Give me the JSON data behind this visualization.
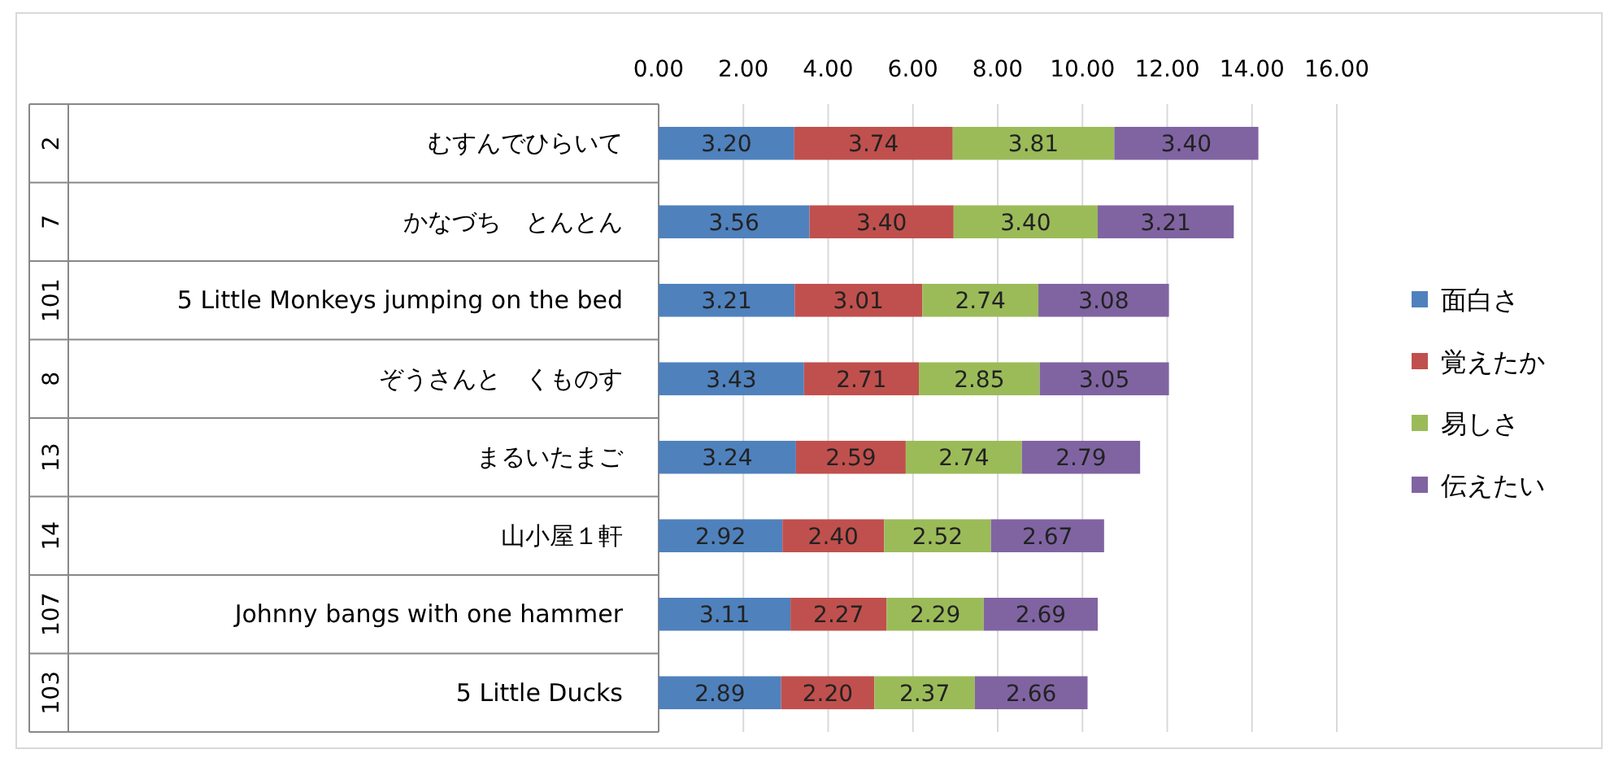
{
  "chart_data": {
    "type": "bar",
    "orientation": "horizontal",
    "stacked": true,
    "categories": [
      "むすんでひらいて",
      "かなづち　とんとん",
      "5 Little Monkeys jumping on the bed",
      "ぞうさんと　くものす",
      "まるいたまご",
      "山小屋１軒",
      "Johnny bangs with one hammer",
      "5 Little Ducks"
    ],
    "y2_categories": [
      "2",
      "7",
      "101",
      "8",
      "13",
      "14",
      "107",
      "103"
    ],
    "xlim": [
      0,
      16
    ],
    "xticks": [
      {
        "value": 0,
        "label": "0.00"
      },
      {
        "value": 2,
        "label": "2.00"
      },
      {
        "value": 4,
        "label": "4.00"
      },
      {
        "value": 6,
        "label": "6.00"
      },
      {
        "value": 8,
        "label": "8.00"
      },
      {
        "value": 10,
        "label": "10.00"
      },
      {
        "value": 12,
        "label": "12.00"
      },
      {
        "value": 14,
        "label": "14.00"
      },
      {
        "value": 16,
        "label": "16.00"
      }
    ],
    "grid": "x",
    "legend": "right",
    "series": [
      {
        "name": "面白さ",
        "color": "#4f81bd",
        "values": [
          3.2,
          3.56,
          3.21,
          3.43,
          3.24,
          2.92,
          3.11,
          2.89
        ],
        "value_labels": [
          "3.20",
          "3.56",
          "3.21",
          "3.43",
          "3.24",
          "2.92",
          "3.11",
          "2.89"
        ]
      },
      {
        "name": "覚えたか",
        "color": "#c0504d",
        "values": [
          3.74,
          3.4,
          3.01,
          2.71,
          2.59,
          2.4,
          2.27,
          2.2
        ],
        "value_labels": [
          "3.74",
          "3.40",
          "3.01",
          "2.71",
          "2.59",
          "2.40",
          "2.27",
          "2.20"
        ]
      },
      {
        "name": "易しさ",
        "color": "#9bbb59",
        "values": [
          3.81,
          3.4,
          2.74,
          2.85,
          2.74,
          2.52,
          2.29,
          2.37
        ],
        "value_labels": [
          "3.81",
          "3.40",
          "2.74",
          "2.85",
          "2.74",
          "2.52",
          "2.29",
          "2.37"
        ]
      },
      {
        "name": "伝えたい",
        "color": "#8064a2",
        "values": [
          3.4,
          3.21,
          3.08,
          3.05,
          2.79,
          2.67,
          2.69,
          2.66
        ],
        "value_labels": [
          "3.40",
          "3.21",
          "3.08",
          "3.05",
          "2.79",
          "2.67",
          "2.69",
          "2.66"
        ]
      }
    ]
  }
}
